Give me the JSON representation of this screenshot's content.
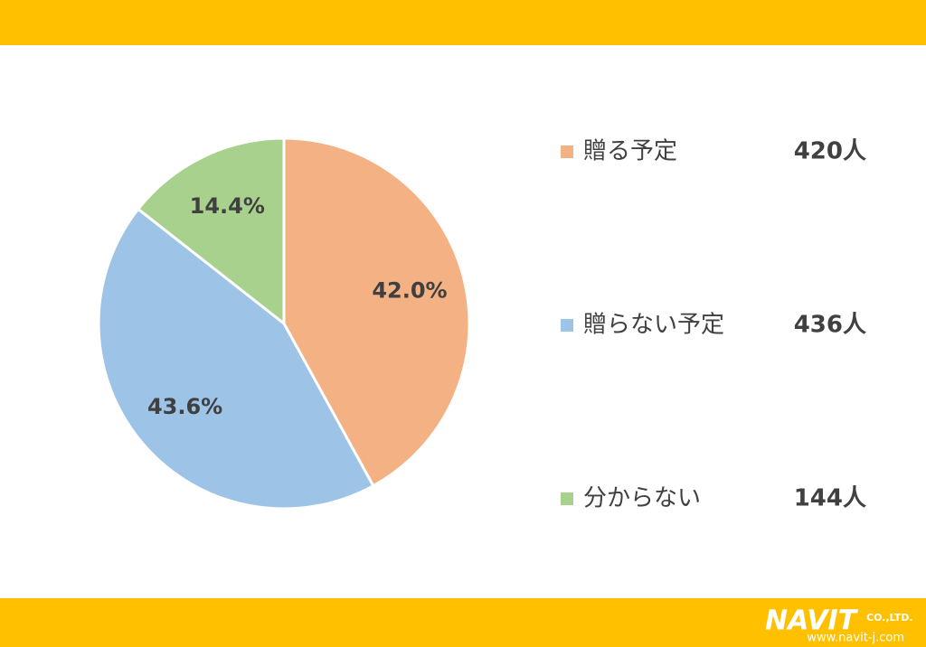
{
  "chart_data": {
    "type": "pie",
    "categories": [
      "贈る予定",
      "贈らない予定",
      "分からない"
    ],
    "values": [
      42.0,
      43.6,
      14.4
    ],
    "value_labels": [
      "42.0%",
      "43.6%",
      "14.4%"
    ],
    "colors": [
      "#F4B183",
      "#9DC3E6",
      "#A9D18E"
    ],
    "counts": [
      420,
      436,
      144
    ],
    "count_labels": [
      "420人",
      "436人",
      "144人"
    ]
  },
  "footer": {
    "logo": "NAVIT",
    "company_suffix": "CO.,LTD.",
    "url": "www.navit-j.com"
  }
}
